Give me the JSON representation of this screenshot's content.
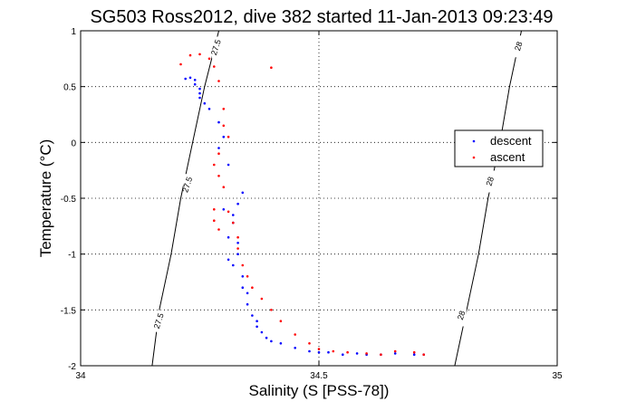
{
  "chart_data": {
    "type": "scatter",
    "title": "SG503 Ross2012, dive 382 started 11-Jan-2013 09:23:49",
    "xlabel": "Salinity (S [PSS-78])",
    "ylabel": "Temperature (°C)",
    "xlim": [
      34,
      35
    ],
    "ylim": [
      -2,
      1
    ],
    "xticks": [
      34,
      34.5,
      35
    ],
    "xtick_labels": [
      "34",
      "34.5",
      "35"
    ],
    "yticks": [
      -2,
      -1.5,
      -1,
      -0.5,
      0,
      0.5,
      1
    ],
    "ytick_labels": [
      "-2",
      "-1.5",
      "-1",
      "-0.5",
      "0",
      "0.5",
      "1"
    ],
    "grid": true,
    "legend_position": "right",
    "series": [
      {
        "name": "descent",
        "color": "#0000ff",
        "x": [
          34.22,
          34.23,
          34.24,
          34.24,
          34.25,
          34.25,
          34.25,
          34.26,
          34.27,
          34.29,
          34.3,
          34.29,
          34.31,
          34.3,
          34.32,
          34.34,
          34.33,
          34.32,
          34.31,
          34.31,
          34.32,
          34.33,
          34.33,
          34.34,
          34.34,
          34.35,
          34.35,
          34.36,
          34.37,
          34.37,
          34.38,
          34.39,
          34.4,
          34.42,
          34.45,
          34.48,
          34.5,
          34.52,
          34.55,
          34.58,
          34.6,
          34.63,
          34.66,
          34.7,
          34.72
        ],
        "y": [
          0.57,
          0.58,
          0.56,
          0.52,
          0.48,
          0.44,
          0.4,
          0.35,
          0.3,
          0.18,
          0.05,
          -0.05,
          -0.2,
          -0.6,
          -0.65,
          -0.45,
          -0.55,
          -0.72,
          -0.85,
          -1.05,
          -1.1,
          -1.0,
          -0.9,
          -1.2,
          -1.3,
          -1.35,
          -1.45,
          -1.55,
          -1.6,
          -1.65,
          -1.7,
          -1.75,
          -1.78,
          -1.8,
          -1.84,
          -1.87,
          -1.88,
          -1.88,
          -1.9,
          -1.89,
          -1.9,
          -1.9,
          -1.89,
          -1.9,
          -1.9
        ]
      },
      {
        "name": "ascent",
        "color": "#ff0000",
        "x": [
          34.21,
          34.23,
          34.25,
          34.27,
          34.28,
          34.29,
          34.3,
          34.3,
          34.31,
          34.29,
          34.28,
          34.29,
          34.3,
          34.28,
          34.28,
          34.29,
          34.31,
          34.32,
          34.33,
          34.33,
          34.34,
          34.35,
          34.36,
          34.38,
          34.4,
          34.42,
          34.45,
          34.48,
          34.5,
          34.53,
          34.56,
          34.6,
          34.63,
          34.66,
          34.7,
          34.72,
          34.4
        ],
        "y": [
          0.7,
          0.78,
          0.79,
          0.75,
          0.68,
          0.55,
          0.3,
          0.15,
          0.05,
          -0.1,
          -0.2,
          -0.3,
          -0.4,
          -0.6,
          -0.7,
          -0.78,
          -0.62,
          -0.72,
          -0.85,
          -0.95,
          -1.1,
          -1.2,
          -1.3,
          -1.4,
          -1.5,
          -1.6,
          -1.72,
          -1.8,
          -1.85,
          -1.87,
          -1.88,
          -1.89,
          -1.9,
          -1.87,
          -1.88,
          -1.9,
          0.67
        ]
      }
    ],
    "contours": [
      {
        "label": "27.5",
        "points": [
          [
            34.29,
            1.0
          ],
          [
            34.26,
            0.5
          ],
          [
            34.235,
            0.0
          ],
          [
            34.21,
            -0.5
          ],
          [
            34.19,
            -1.0
          ],
          [
            34.165,
            -1.5
          ],
          [
            34.15,
            -2.0
          ]
        ]
      },
      {
        "label": "28",
        "points": [
          [
            34.925,
            1.0
          ],
          [
            34.9,
            0.5
          ],
          [
            34.88,
            0.0
          ],
          [
            34.855,
            -0.5
          ],
          [
            34.835,
            -1.0
          ],
          [
            34.81,
            -1.5
          ],
          [
            34.785,
            -2.0
          ]
        ]
      }
    ],
    "contour_labels": [
      {
        "text": "27.5",
        "x": 34.285,
        "y": 0.85
      },
      {
        "text": "27.5",
        "x": 34.225,
        "y": -0.38
      },
      {
        "text": "27.5",
        "x": 34.165,
        "y": -1.6
      },
      {
        "text": "28",
        "x": 34.92,
        "y": 0.86
      },
      {
        "text": "28",
        "x": 34.86,
        "y": -0.35
      },
      {
        "text": "28",
        "x": 34.8,
        "y": -1.55
      }
    ]
  }
}
